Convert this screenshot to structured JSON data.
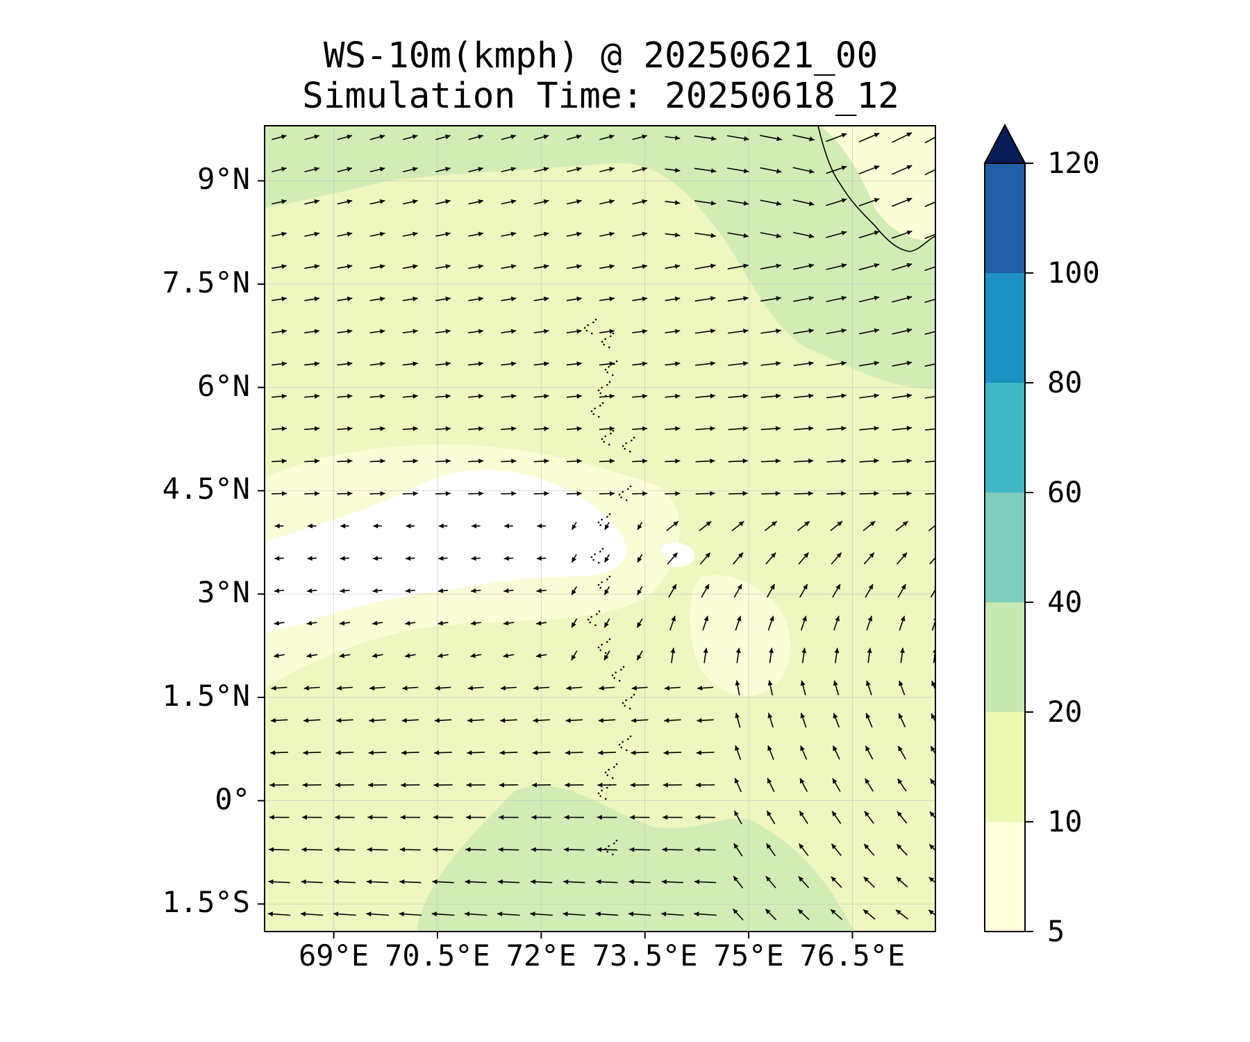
{
  "title": {
    "line1": "WS-10m(kmph) @ 20250621_00",
    "line2": "Simulation Time: 20250618_12"
  },
  "map": {
    "lon_range": [
      68.0,
      77.7
    ],
    "lat_range": [
      -1.9,
      9.8
    ],
    "lat_ticks": [
      {
        "value": 9.0,
        "label": "9°N"
      },
      {
        "value": 7.5,
        "label": "7.5°N"
      },
      {
        "value": 6.0,
        "label": "6°N"
      },
      {
        "value": 4.5,
        "label": "4.5°N"
      },
      {
        "value": 3.0,
        "label": "3°N"
      },
      {
        "value": 1.5,
        "label": "1.5°N"
      },
      {
        "value": 0.0,
        "label": "0°"
      },
      {
        "value": -1.5,
        "label": "1.5°S"
      }
    ],
    "lon_ticks": [
      {
        "value": 69.0,
        "label": "69°E"
      },
      {
        "value": 70.5,
        "label": "70.5°E"
      },
      {
        "value": 72.0,
        "label": "72°E"
      },
      {
        "value": 73.5,
        "label": "73.5°E"
      },
      {
        "value": 75.0,
        "label": "75°E"
      },
      {
        "value": 76.5,
        "label": "76.5°E"
      }
    ],
    "grid": true,
    "features": [
      "India/Kerala coastline (top-right)",
      "Maldives atolls (dotted, centre)"
    ]
  },
  "colorbar": {
    "levels": [
      5,
      10,
      20,
      40,
      60,
      80,
      100,
      120
    ],
    "labels": [
      "5",
      "10",
      "20",
      "40",
      "60",
      "80",
      "100",
      "120"
    ],
    "colors": [
      "#ffffd9",
      "#edf8b1",
      "#c7e9b4",
      "#7fcdbb",
      "#41b6c4",
      "#1d91c0",
      "#225ea8",
      "#0c2c84"
    ],
    "extend": "max",
    "extend_color": "#081d58"
  },
  "colors": {
    "very_low": "#ffffff",
    "band_5_10": "#fbfdd6",
    "band_10_20": "#eef7c0",
    "band_20_40": "#d2ecb6",
    "arrow": "#000000"
  }
}
